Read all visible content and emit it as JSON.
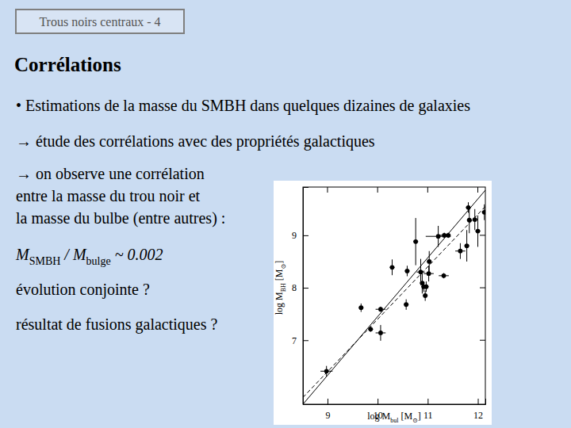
{
  "header": {
    "title": "Trous noirs centraux - 4"
  },
  "heading": "Corrélations",
  "bullets": [
    "• Estimations de la masse du SMBH dans quelques dizaines de galaxies",
    "→ étude des corrélations avec des propriétés galactiques"
  ],
  "paragraph": [
    "→ on observe une corrélation",
    "entre la masse du trou noir et",
    "la masse du bulbe (entre autres) :"
  ],
  "formula": [
    {
      "text": "M"
    },
    {
      "text": "SMBH",
      "sub": true
    },
    {
      "text": " / M"
    },
    {
      "text": "bulge",
      "sub": true
    },
    {
      "text": " ~ 0.002"
    }
  ],
  "questions": [
    "évolution conjointe ?",
    "résultat de fusions galactiques ?"
  ],
  "chart_data": {
    "type": "scatter",
    "x_label": [
      {
        "text": "log M"
      },
      {
        "text": "bul",
        "sub": true
      },
      {
        "text": " [M"
      },
      {
        "text": "⊙",
        "sub": true
      },
      {
        "text": "]"
      }
    ],
    "y_label": [
      {
        "text": "log M"
      },
      {
        "text": "BH",
        "sub": true
      },
      {
        "text": " [M"
      },
      {
        "text": "⊙",
        "sub": true
      },
      {
        "text": "]"
      }
    ],
    "x": [
      8.98,
      9.67,
      9.86,
      10.06,
      10.06,
      10.57,
      10.29,
      10.59,
      10.76,
      10.86,
      10.89,
      10.92,
      10.97,
      11.02,
      10.95,
      11.03,
      11.21,
      11.33,
      11.41,
      11.32,
      11.65,
      11.78,
      11.83,
      11.94,
      11.81,
      12.0,
      12.13
    ],
    "y": [
      6.41,
      7.62,
      7.21,
      7.14,
      7.59,
      7.68,
      8.39,
      8.32,
      8.88,
      8.3,
      8.09,
      8.02,
      8.02,
      8.27,
      7.85,
      8.5,
      8.98,
      9.0,
      9.0,
      8.23,
      8.7,
      8.8,
      9.29,
      9.3,
      9.53,
      9.08,
      9.44
    ],
    "xerr": [
      0.12,
      0.05,
      0.05,
      0.1,
      0.1,
      0.05,
      0.05,
      0.05,
      0.05,
      0.08,
      0.05,
      0.05,
      0.05,
      0.1,
      0.05,
      0.05,
      0.25,
      0.1,
      0.05,
      0.1,
      0.1,
      0.05,
      0.05,
      0.05,
      0.05,
      0.05,
      0.05
    ],
    "yerr": [
      0.1,
      0.08,
      0.05,
      0.15,
      0.05,
      0.1,
      0.15,
      0.1,
      0.45,
      0.25,
      0.2,
      0.1,
      0.1,
      0.15,
      0.1,
      0.2,
      0.2,
      0.05,
      0.05,
      0.05,
      0.15,
      0.3,
      0.25,
      0.2,
      0.1,
      0.3,
      0.15
    ],
    "lines": [
      {
        "line_style": "solid",
        "x": [
          8.51,
          12.15
        ],
        "y": [
          5.78,
          9.86
        ]
      },
      {
        "line_style": "dashed",
        "x": [
          8.51,
          12.15
        ],
        "y": [
          5.91,
          9.55
        ]
      }
    ],
    "color": "#000000",
    "marker": "circle",
    "xlim": [
      8.51,
      12.15
    ],
    "ylim": [
      5.78,
      9.92
    ],
    "xticks": [
      9,
      10,
      11,
      12
    ],
    "yticks": [
      7,
      8,
      9
    ]
  }
}
